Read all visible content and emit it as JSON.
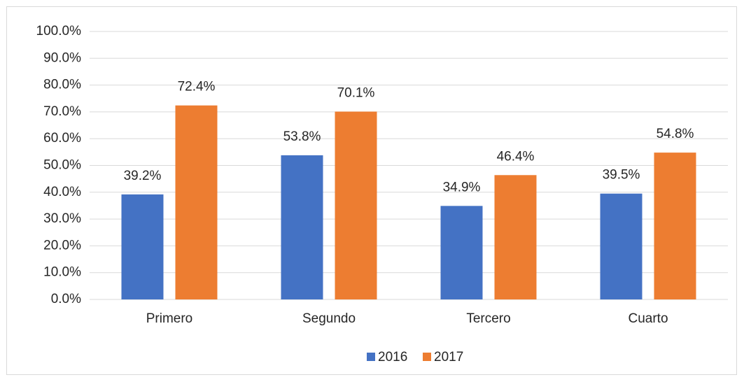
{
  "chart_data": {
    "type": "bar",
    "categories": [
      "Primero",
      "Segundo",
      "Tercero",
      "Cuarto"
    ],
    "series": [
      {
        "name": "2016",
        "color": "#4472c4",
        "values": [
          39.2,
          53.8,
          34.9,
          39.5
        ],
        "value_labels": [
          "39.2%",
          "53.8%",
          "34.9%",
          "39.5%"
        ]
      },
      {
        "name": "2017",
        "color": "#ed7d31",
        "values": [
          72.4,
          70.1,
          46.4,
          54.8
        ],
        "value_labels": [
          "72.4%",
          "70.1%",
          "46.4%",
          "54.8%"
        ]
      }
    ],
    "ylim": [
      0,
      100
    ],
    "yticks": [
      {
        "value": 0,
        "label": "0.0%"
      },
      {
        "value": 10,
        "label": "10.0%"
      },
      {
        "value": 20,
        "label": "20.0%"
      },
      {
        "value": 30,
        "label": "30.0%"
      },
      {
        "value": 40,
        "label": "40.0%"
      },
      {
        "value": 50,
        "label": "50.0%"
      },
      {
        "value": 60,
        "label": "60.0%"
      },
      {
        "value": 70,
        "label": "70.0%"
      },
      {
        "value": 80,
        "label": "80.0%"
      },
      {
        "value": 90,
        "label": "90.0%"
      },
      {
        "value": 100,
        "label": "100.0%"
      }
    ],
    "grid": true,
    "legend": "bottom"
  }
}
